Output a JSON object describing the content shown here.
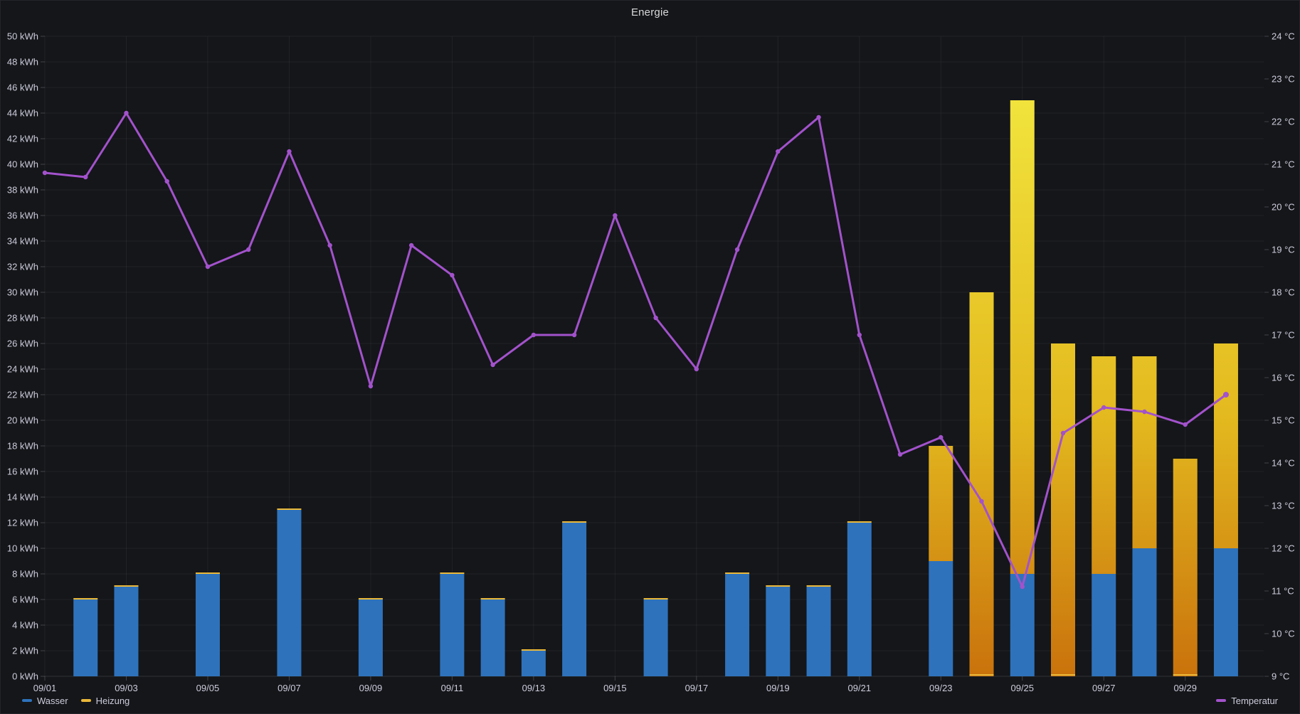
{
  "panel": {
    "title": "Energie"
  },
  "legend": {
    "items": [
      {
        "label": "Wasser",
        "color": "#2E72BC"
      },
      {
        "label": "Heizung",
        "color": "#EAB839"
      },
      {
        "label": "Temperatur",
        "color": "#A352CC"
      }
    ]
  },
  "chart_data": {
    "type": "bar",
    "subtype": "stacked-bars-with-line",
    "title": "Energie",
    "x_dates": [
      "09/01",
      "09/02",
      "09/03",
      "09/04",
      "09/05",
      "09/06",
      "09/07",
      "09/08",
      "09/09",
      "09/10",
      "09/11",
      "09/12",
      "09/13",
      "09/14",
      "09/15",
      "09/16",
      "09/17",
      "09/18",
      "09/19",
      "09/20",
      "09/21",
      "09/22",
      "09/23",
      "09/24",
      "09/25",
      "09/26",
      "09/27",
      "09/28",
      "09/29",
      "09/30"
    ],
    "x_tick_labels": [
      "09/01",
      "09/03",
      "09/05",
      "09/07",
      "09/09",
      "09/11",
      "09/13",
      "09/15",
      "09/17",
      "09/19",
      "09/21",
      "09/23",
      "09/25",
      "09/27",
      "09/29"
    ],
    "y_left": {
      "unit": "kWh",
      "min": 0,
      "max": 50,
      "step": 2,
      "tick_labels": [
        "0 kWh",
        "2 kWh",
        "4 kWh",
        "6 kWh",
        "8 kWh",
        "10 kWh",
        "12 kWh",
        "14 kWh",
        "16 kWh",
        "18 kWh",
        "20 kWh",
        "22 kWh",
        "24 kWh",
        "26 kWh",
        "28 kWh",
        "30 kWh",
        "32 kWh",
        "34 kWh",
        "36 kWh",
        "38 kWh",
        "40 kWh",
        "42 kWh",
        "44 kWh",
        "46 kWh",
        "48 kWh",
        "50 kWh"
      ]
    },
    "y_right": {
      "unit": "°C",
      "min": 9,
      "max": 24,
      "step": 1,
      "tick_labels": [
        "9 °C",
        "10 °C",
        "11 °C",
        "12 °C",
        "13 °C",
        "14 °C",
        "15 °C",
        "16 °C",
        "17 °C",
        "18 °C",
        "19 °C",
        "20 °C",
        "21 °C",
        "22 °C",
        "23 °C",
        "24 °C"
      ]
    },
    "series": [
      {
        "name": "Wasser",
        "type": "bar",
        "axis": "left",
        "unit": "kWh",
        "color": "#2E72BC",
        "values": [
          null,
          6,
          7,
          null,
          8,
          null,
          13,
          null,
          6,
          null,
          8,
          6,
          2,
          12,
          null,
          6,
          null,
          8,
          7,
          7,
          12,
          null,
          9,
          0,
          8,
          0,
          8,
          10,
          0,
          10
        ]
      },
      {
        "name": "Heizung",
        "type": "bar",
        "axis": "left",
        "unit": "kWh",
        "stacked_on": "Wasser",
        "gradient_bottom": "#C9720C",
        "gradient_mid": "#E3B91F",
        "gradient_top": "#F1E33C",
        "values": [
          null,
          0,
          0,
          null,
          0,
          null,
          0,
          null,
          0,
          null,
          0,
          0,
          0,
          0,
          null,
          0,
          null,
          0,
          0,
          0,
          0,
          null,
          9,
          30,
          37,
          26,
          17,
          15,
          17,
          16
        ]
      },
      {
        "name": "Temperatur",
        "type": "line",
        "axis": "right",
        "unit": "°C",
        "color": "#A352CC",
        "values": [
          20.8,
          20.7,
          22.2,
          20.6,
          18.6,
          19.0,
          21.3,
          19.1,
          15.8,
          19.1,
          18.4,
          16.3,
          17.0,
          17.0,
          19.8,
          17.4,
          16.2,
          19.0,
          21.3,
          22.1,
          17.0,
          14.2,
          14.6,
          13.1,
          11.1,
          14.7,
          15.3,
          15.2,
          14.9,
          15.6
        ]
      }
    ],
    "grid": {
      "horizontal_every_kwh": 2,
      "vertical_every_days": 2,
      "color": "rgba(204,204,220,0.07)"
    },
    "legend_position": "bottom"
  }
}
